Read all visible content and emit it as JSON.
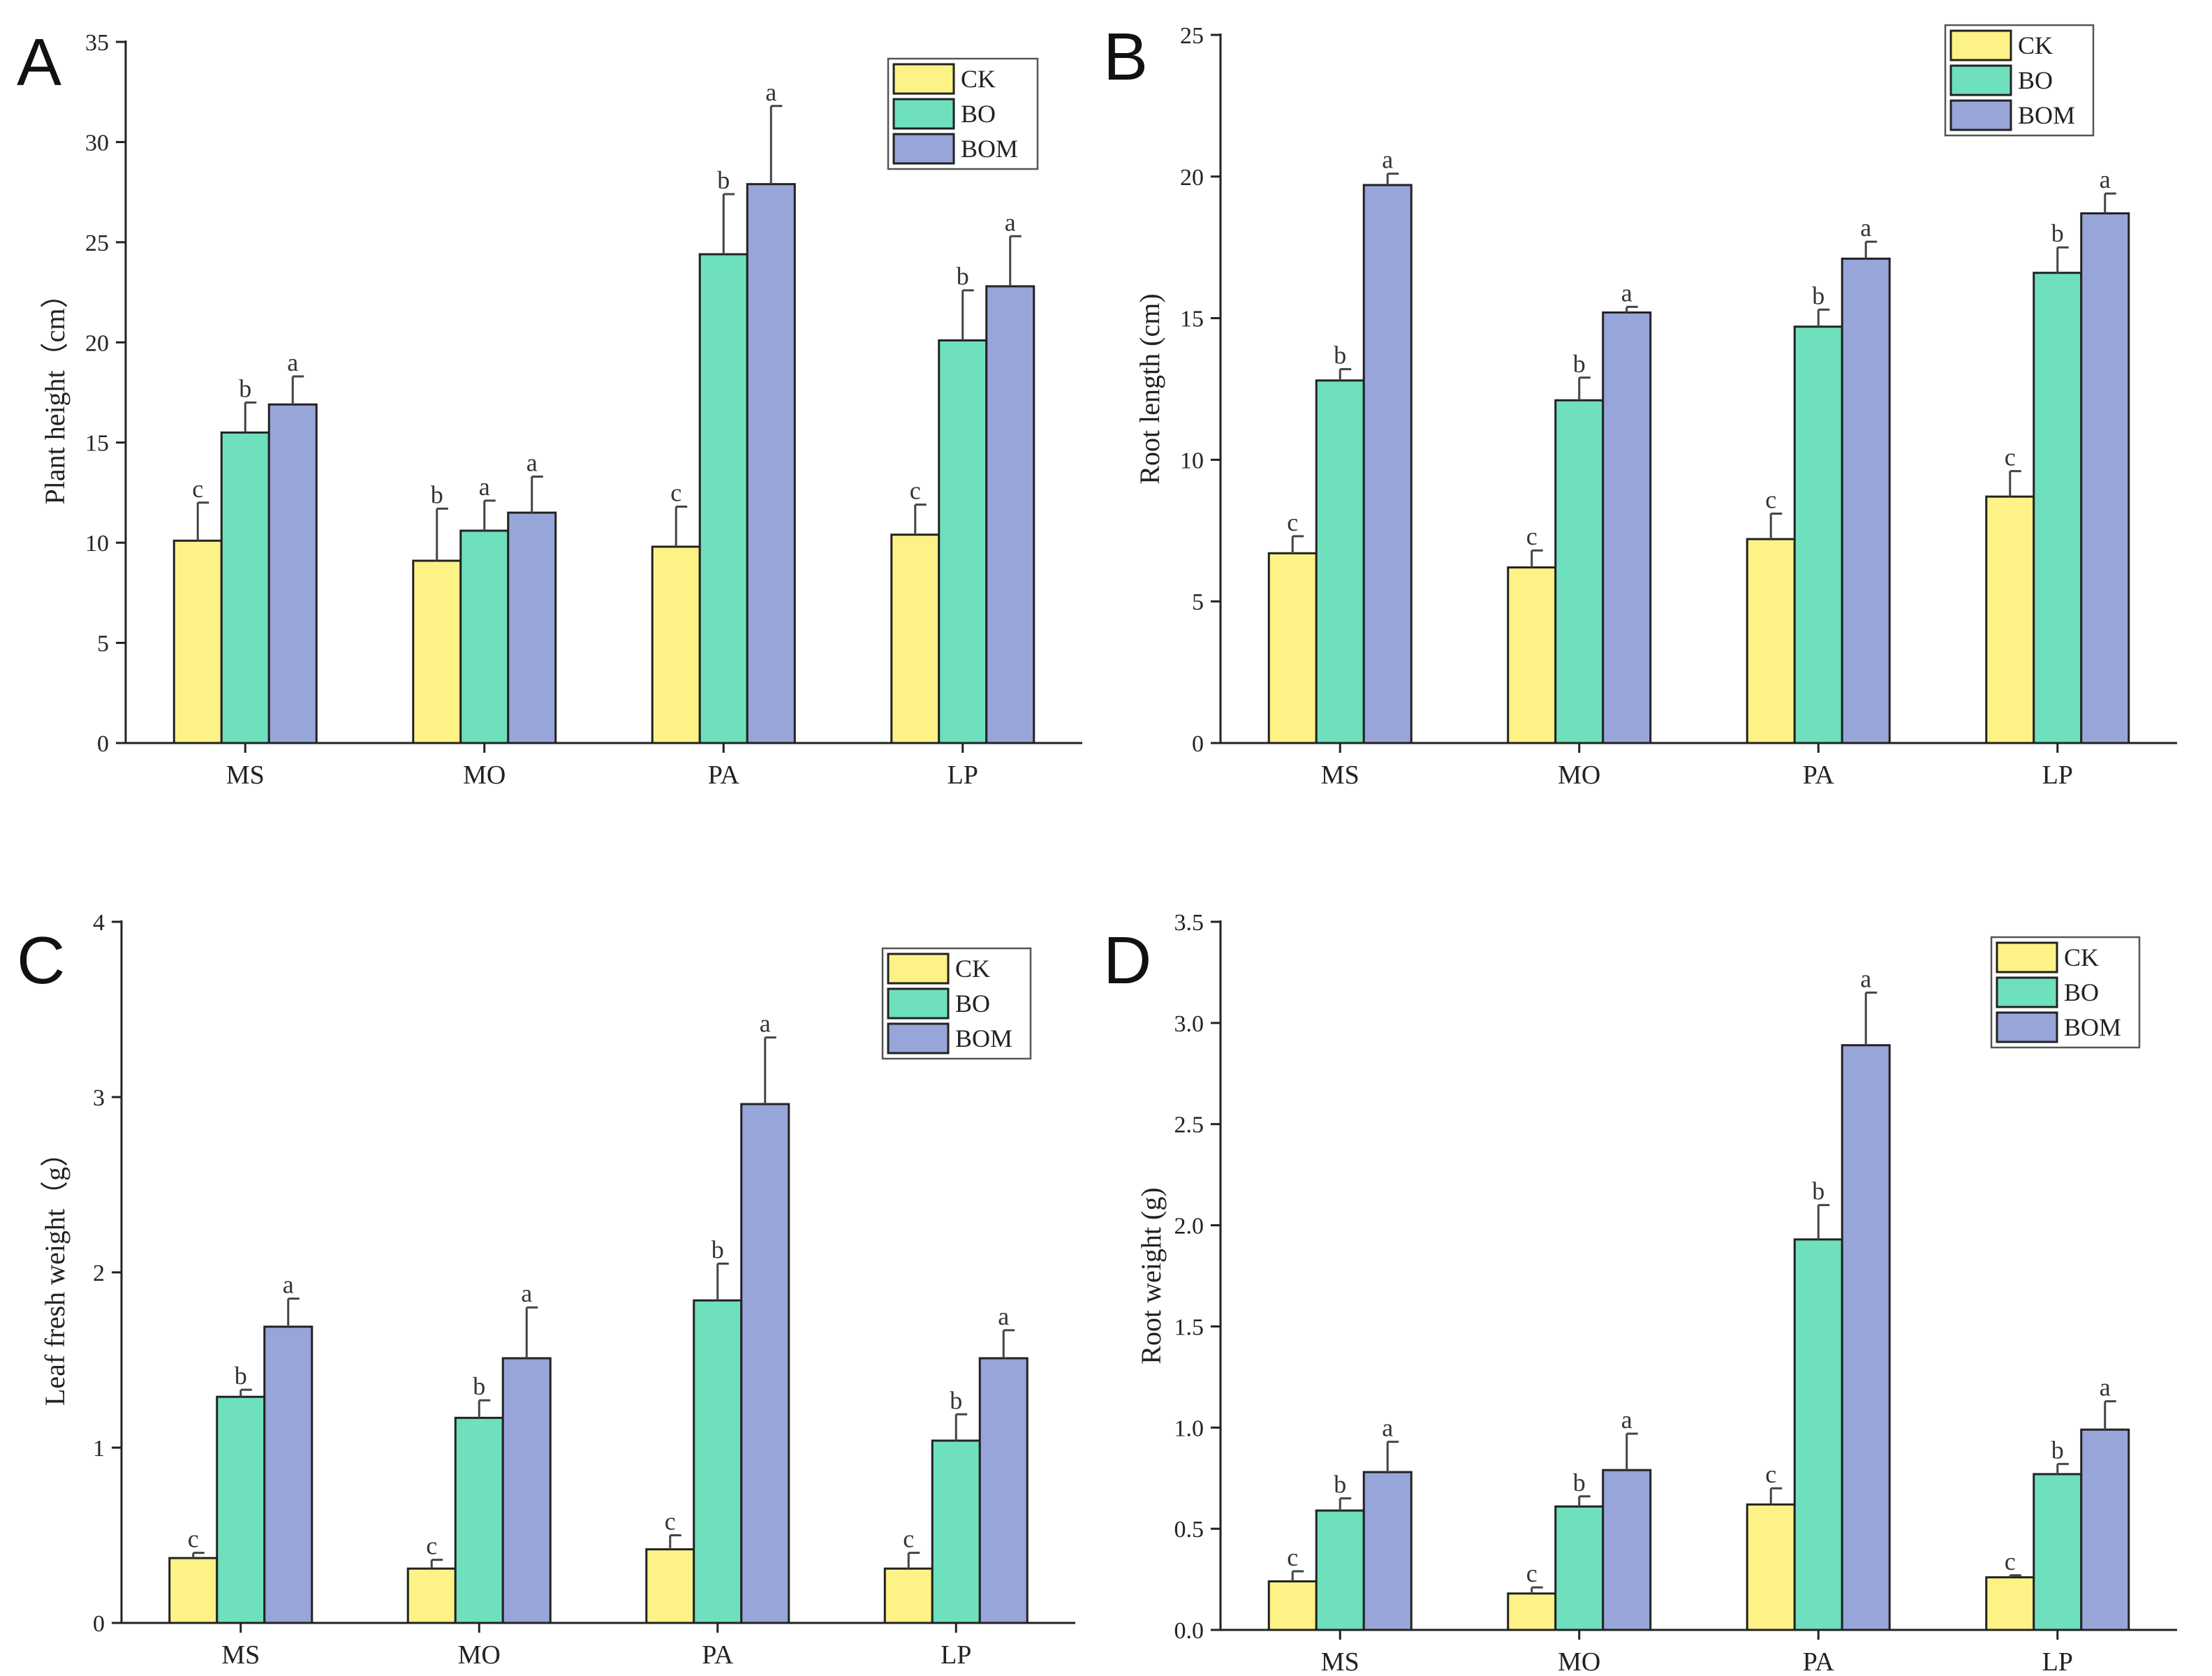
{
  "colors": {
    "CK": "#fdf286",
    "BO": "#6ee0bd",
    "BOM": "#97a5d8"
  },
  "chart_data": [
    {
      "type": "bar",
      "panel_label": "A",
      "ylabel": "Plant height（cm）",
      "ylim": [
        0,
        35
      ],
      "yticks": [
        0,
        5,
        10,
        15,
        20,
        25,
        30,
        35
      ],
      "categories": [
        "MS",
        "MO",
        "PA",
        "LP"
      ],
      "legend_position": "top-right",
      "series": [
        {
          "name": "CK",
          "values": [
            10.1,
            9.1,
            9.8,
            10.4
          ],
          "errors": [
            1.9,
            2.6,
            2.0,
            1.5
          ],
          "labels": [
            "c",
            "b",
            "c",
            "c"
          ]
        },
        {
          "name": "BO",
          "values": [
            15.5,
            10.6,
            24.4,
            20.1
          ],
          "errors": [
            1.5,
            1.5,
            3.0,
            2.5
          ],
          "labels": [
            "b",
            "a",
            "b",
            "b"
          ]
        },
        {
          "name": "BOM",
          "values": [
            16.9,
            11.5,
            27.9,
            22.8
          ],
          "errors": [
            1.4,
            1.8,
            3.9,
            2.5
          ],
          "labels": [
            "a",
            "a",
            "a",
            "a"
          ]
        }
      ]
    },
    {
      "type": "bar",
      "panel_label": "B",
      "ylabel": "Root length (cm)",
      "ylim": [
        0,
        25
      ],
      "yticks": [
        0,
        5,
        10,
        15,
        20,
        25
      ],
      "categories": [
        "MS",
        "MO",
        "PA",
        "LP"
      ],
      "legend_position": "top-right",
      "series": [
        {
          "name": "CK",
          "values": [
            6.7,
            6.2,
            7.2,
            8.7
          ],
          "errors": [
            0.6,
            0.6,
            0.9,
            0.9
          ],
          "labels": [
            "c",
            "c",
            "c",
            "c"
          ]
        },
        {
          "name": "BO",
          "values": [
            12.8,
            12.1,
            14.7,
            16.6
          ],
          "errors": [
            0.4,
            0.8,
            0.6,
            0.9
          ],
          "labels": [
            "b",
            "b",
            "b",
            "b"
          ]
        },
        {
          "name": "BOM",
          "values": [
            19.7,
            15.2,
            17.1,
            18.7
          ],
          "errors": [
            0.4,
            0.2,
            0.6,
            0.7
          ],
          "labels": [
            "a",
            "a",
            "a",
            "a"
          ]
        }
      ]
    },
    {
      "type": "bar",
      "panel_label": "C",
      "ylabel": "Leaf fresh weight（g）",
      "ylim": [
        0,
        4
      ],
      "yticks": [
        0,
        1,
        2,
        3,
        4
      ],
      "categories": [
        "MS",
        "MO",
        "PA",
        "LP"
      ],
      "legend_position": "top-right",
      "series": [
        {
          "name": "CK",
          "values": [
            0.37,
            0.31,
            0.42,
            0.31
          ],
          "errors": [
            0.03,
            0.05,
            0.08,
            0.09
          ],
          "labels": [
            "c",
            "c",
            "c",
            "c"
          ]
        },
        {
          "name": "BO",
          "values": [
            1.29,
            1.17,
            1.84,
            1.04
          ],
          "errors": [
            0.04,
            0.1,
            0.21,
            0.15
          ],
          "labels": [
            "b",
            "b",
            "b",
            "b"
          ]
        },
        {
          "name": "BOM",
          "values": [
            1.69,
            1.51,
            2.96,
            1.51
          ],
          "errors": [
            0.16,
            0.29,
            0.38,
            0.16
          ],
          "labels": [
            "a",
            "a",
            "a",
            "a"
          ]
        }
      ]
    },
    {
      "type": "bar",
      "panel_label": "D",
      "ylabel": "Root weight (g)",
      "ylim": [
        0,
        3.5
      ],
      "yticks": [
        "0.0",
        "0.5",
        "1.0",
        "1.5",
        "2.0",
        "2.5",
        "3.0",
        "3.5"
      ],
      "categories": [
        "MS",
        "MO",
        "PA",
        "LP"
      ],
      "legend_position": "top-right",
      "series": [
        {
          "name": "CK",
          "values": [
            0.24,
            0.18,
            0.62,
            0.26
          ],
          "errors": [
            0.05,
            0.03,
            0.08,
            0.01
          ],
          "labels": [
            "c",
            "c",
            "c",
            "c"
          ]
        },
        {
          "name": "BO",
          "values": [
            0.59,
            0.61,
            1.93,
            0.77
          ],
          "errors": [
            0.06,
            0.05,
            0.17,
            0.05
          ],
          "labels": [
            "b",
            "b",
            "b",
            "b"
          ]
        },
        {
          "name": "BOM",
          "values": [
            0.78,
            0.79,
            2.89,
            0.99
          ],
          "errors": [
            0.15,
            0.18,
            0.26,
            0.14
          ],
          "labels": [
            "a",
            "a",
            "a",
            "a"
          ]
        }
      ]
    }
  ]
}
